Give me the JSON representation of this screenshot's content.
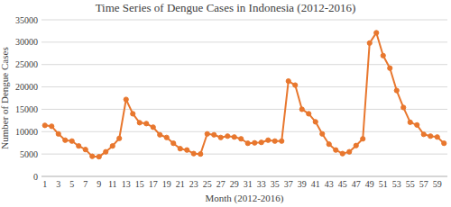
{
  "chart_data": {
    "type": "line",
    "title": "Time Series of Dengue Cases in Indonesia (2012-2016)",
    "xlabel": "Month (2012-2016)",
    "ylabel": "Number of Dengue Cases",
    "categories": [
      "1",
      null,
      "3",
      null,
      "5",
      null,
      "7",
      null,
      "9",
      null,
      "11",
      null,
      "13",
      null,
      "15",
      null,
      "17",
      null,
      "19",
      null,
      "21",
      null,
      "23",
      null,
      "25",
      null,
      "27",
      null,
      "29",
      null,
      "31",
      null,
      "33",
      null,
      "35",
      null,
      "37",
      null,
      "39",
      null,
      "41",
      null,
      "43",
      null,
      "45",
      null,
      "47",
      null,
      "49",
      null,
      "51",
      null,
      "53",
      null,
      "55",
      null,
      "57",
      null,
      "59",
      null
    ],
    "values": [
      11400,
      11200,
      9500,
      8100,
      7900,
      6800,
      6000,
      4500,
      4400,
      5500,
      6800,
      8500,
      17200,
      14000,
      12000,
      11800,
      11000,
      9300,
      8700,
      7400,
      6200,
      5900,
      5100,
      5000,
      9500,
      9300,
      8700,
      9000,
      8800,
      8400,
      7400,
      7500,
      7600,
      8100,
      7900,
      7900,
      21300,
      20400,
      15000,
      14000,
      12200,
      9500,
      7200,
      5900,
      5100,
      5500,
      6900,
      8400,
      29800,
      32100,
      27000,
      24200,
      19200,
      15400,
      12100,
      11500,
      9400,
      9000,
      8800,
      7400
    ],
    "color": "#e8772e",
    "marker": "circle",
    "line_style": "solid",
    "grid": true,
    "ylim": [
      0,
      35000
    ],
    "yticks": [
      0,
      5000,
      10000,
      15000,
      20000,
      25000,
      30000,
      35000
    ]
  }
}
